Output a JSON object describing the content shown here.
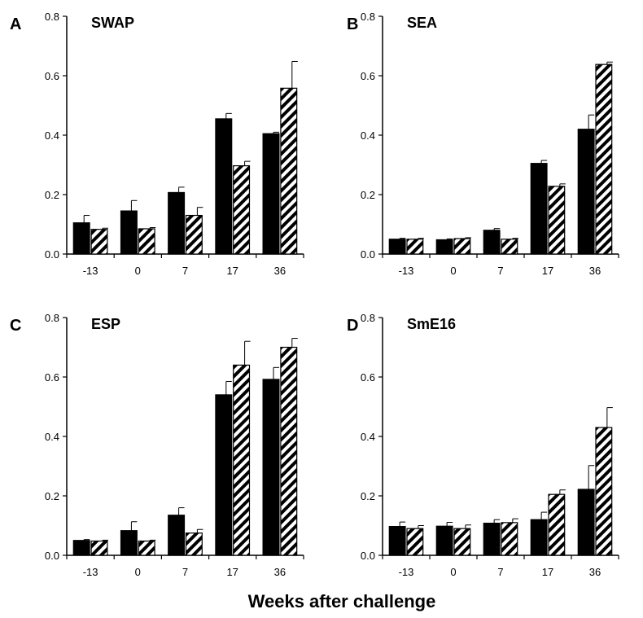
{
  "chart_data": [
    {
      "type": "bar",
      "panel": "A",
      "title": "SWAP",
      "categories": [
        "-13",
        "0",
        "7",
        "17",
        "36"
      ],
      "ylim": [
        0,
        0.8
      ],
      "yticks": [
        "0.0",
        "0.2",
        "0.4",
        "0.6",
        "0.8"
      ],
      "series": [
        {
          "pattern": "solid",
          "values": [
            0.105,
            0.145,
            0.207,
            0.455,
            0.405
          ],
          "errors": [
            0.025,
            0.035,
            0.018,
            0.018,
            0.005
          ]
        },
        {
          "pattern": "hatched",
          "values": [
            0.083,
            0.085,
            0.13,
            0.297,
            0.558
          ],
          "errors": [
            0.004,
            0.004,
            0.027,
            0.015,
            0.09
          ]
        }
      ]
    },
    {
      "type": "bar",
      "panel": "B",
      "title": "SEA",
      "categories": [
        "-13",
        "0",
        "7",
        "17",
        "36"
      ],
      "ylim": [
        0,
        0.8
      ],
      "yticks": [
        "0.0",
        "0.2",
        "0.4",
        "0.6",
        "0.8"
      ],
      "series": [
        {
          "pattern": "solid",
          "values": [
            0.05,
            0.048,
            0.08,
            0.305,
            0.42
          ],
          "errors": [
            0.003,
            0.003,
            0.006,
            0.01,
            0.048
          ]
        },
        {
          "pattern": "hatched",
          "values": [
            0.05,
            0.052,
            0.05,
            0.228,
            0.638
          ],
          "errors": [
            0.003,
            0.003,
            0.003,
            0.008,
            0.008
          ]
        }
      ]
    },
    {
      "type": "bar",
      "panel": "C",
      "title": "ESP",
      "categories": [
        "-13",
        "0",
        "7",
        "17",
        "36"
      ],
      "ylim": [
        0,
        0.8
      ],
      "yticks": [
        "0.0",
        "0.2",
        "0.4",
        "0.6",
        "0.8"
      ],
      "series": [
        {
          "pattern": "solid",
          "values": [
            0.05,
            0.083,
            0.135,
            0.54,
            0.592
          ],
          "errors": [
            0.003,
            0.03,
            0.025,
            0.045,
            0.04
          ]
        },
        {
          "pattern": "hatched",
          "values": [
            0.048,
            0.048,
            0.075,
            0.64,
            0.7
          ],
          "errors": [
            0.003,
            0.003,
            0.012,
            0.08,
            0.03
          ]
        }
      ]
    },
    {
      "type": "bar",
      "panel": "D",
      "title": "SmE16",
      "categories": [
        "-13",
        "0",
        "7",
        "17",
        "36"
      ],
      "ylim": [
        0,
        0.8
      ],
      "yticks": [
        "0.0",
        "0.2",
        "0.4",
        "0.6",
        "0.8"
      ],
      "series": [
        {
          "pattern": "solid",
          "values": [
            0.097,
            0.098,
            0.108,
            0.12,
            0.222
          ],
          "errors": [
            0.015,
            0.013,
            0.012,
            0.025,
            0.08
          ]
        },
        {
          "pattern": "hatched",
          "values": [
            0.09,
            0.09,
            0.11,
            0.205,
            0.43
          ],
          "errors": [
            0.01,
            0.012,
            0.013,
            0.015,
            0.067
          ]
        }
      ]
    }
  ],
  "xlabel": "Weeks after challenge"
}
